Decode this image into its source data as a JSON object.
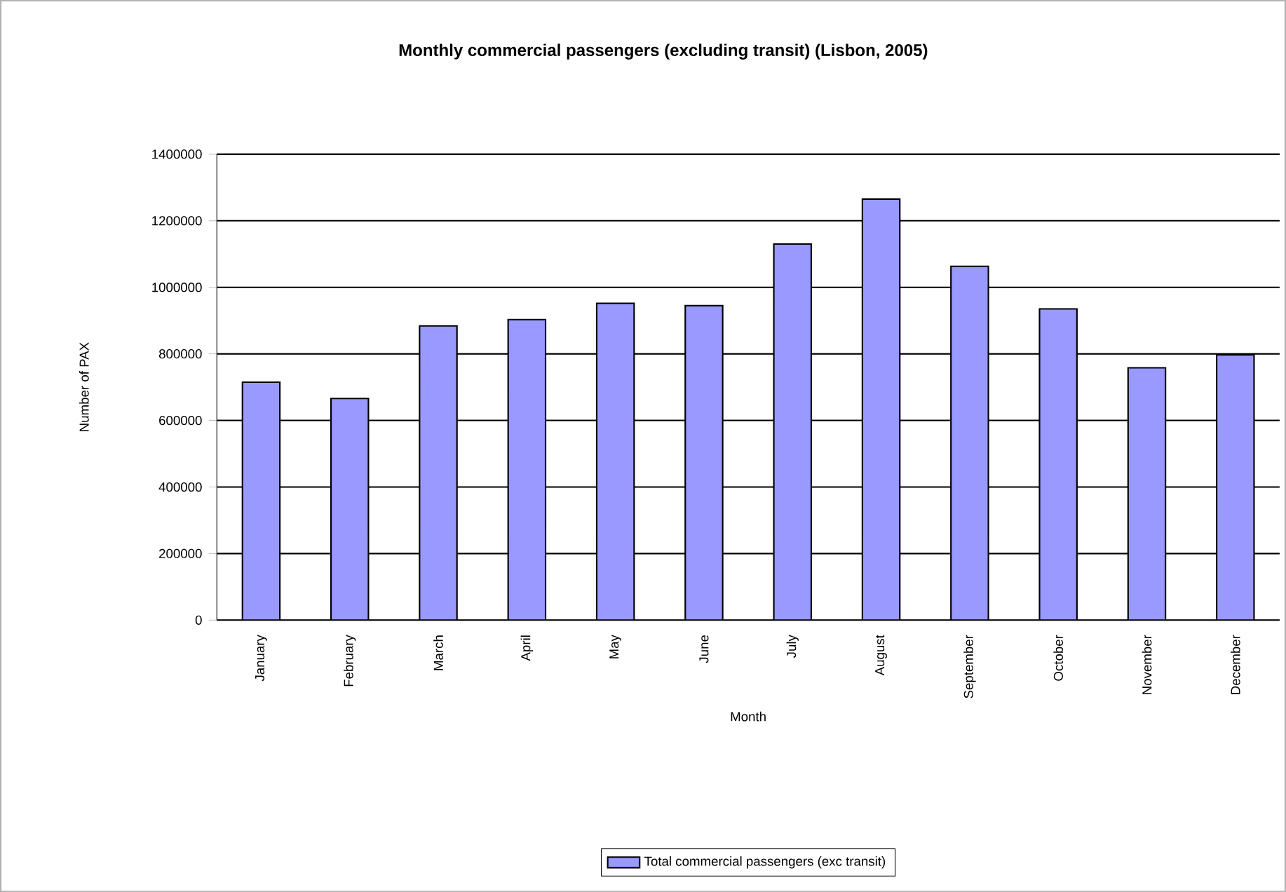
{
  "chart_data": {
    "type": "bar",
    "title": "Monthly commercial passengers (excluding transit) (Lisbon, 2005)",
    "xlabel": "Month",
    "ylabel": "Number of PAX",
    "categories": [
      "January",
      "February",
      "March",
      "April",
      "May",
      "June",
      "July",
      "August",
      "September",
      "October",
      "November",
      "December"
    ],
    "series": [
      {
        "name": "Total commercial passengers (exc transit)",
        "color": "#9999ff",
        "values": [
          715000,
          666000,
          884000,
          903000,
          952000,
          945000,
          1130000,
          1265000,
          1063000,
          935000,
          758000,
          797000
        ]
      }
    ],
    "ylim": [
      0,
      1400000
    ],
    "yticks": [
      0,
      200000,
      400000,
      600000,
      800000,
      1000000,
      1200000,
      1400000
    ],
    "grid": "y",
    "legend": "bottom"
  }
}
